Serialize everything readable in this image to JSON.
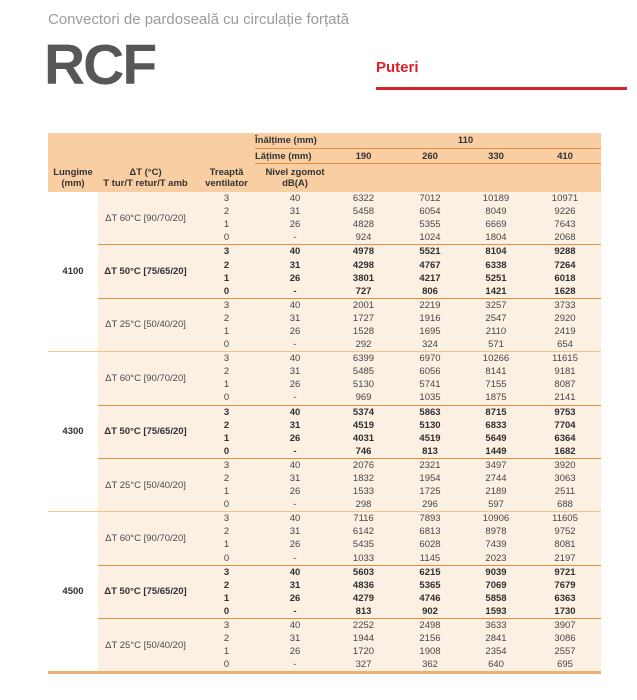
{
  "page": {
    "subtitle": "Convectori de pardoseală cu circulație forțată",
    "product_code": "RCF",
    "section_title": "Puteri"
  },
  "colors": {
    "accent_red": "#d8232a",
    "header_peach": "#f9cea3",
    "body_cream": "#fbf0e1",
    "line_dark_orange": "#e78f3e",
    "line_light_orange": "#f2c38e",
    "line_bottom": "#efaf72"
  },
  "table": {
    "height_row": {
      "label": "Înălțime (mm)",
      "value": "110"
    },
    "width_row": {
      "label": "Lățime (mm)",
      "values": [
        "190",
        "260",
        "330",
        "410"
      ]
    },
    "columns": {
      "len_col": [
        "Lungime",
        "(mm)"
      ],
      "dt_col": [
        "ΔT (°C)",
        "T tur/T retur/T amb"
      ],
      "step_col": [
        "Treaptă",
        "ventilator"
      ],
      "noise_col": [
        "Nivel zgomot",
        "dB(A)"
      ]
    },
    "groups": [
      {
        "length": "4100",
        "subgroups": [
          {
            "dt": "ΔT 60°C [90/70/20]",
            "bold": false,
            "rows": [
              {
                "step": "3",
                "noise": "40",
                "values": [
                  "6322",
                  "7012",
                  "10189",
                  "10971"
                ]
              },
              {
                "step": "2",
                "noise": "31",
                "values": [
                  "5458",
                  "6054",
                  "8049",
                  "9226"
                ]
              },
              {
                "step": "1",
                "noise": "26",
                "values": [
                  "4828",
                  "5355",
                  "6669",
                  "7643"
                ]
              },
              {
                "step": "0",
                "noise": "-",
                "values": [
                  "924",
                  "1024",
                  "1804",
                  "2068"
                ]
              }
            ]
          },
          {
            "dt": "ΔT 50°C [75/65/20]",
            "bold": true,
            "rows": [
              {
                "step": "3",
                "noise": "40",
                "values": [
                  "4978",
                  "5521",
                  "8104",
                  "9288"
                ]
              },
              {
                "step": "2",
                "noise": "31",
                "values": [
                  "4298",
                  "4767",
                  "6338",
                  "7264"
                ]
              },
              {
                "step": "1",
                "noise": "26",
                "values": [
                  "3801",
                  "4217",
                  "5251",
                  "6018"
                ]
              },
              {
                "step": "0",
                "noise": "-",
                "values": [
                  "727",
                  "806",
                  "1421",
                  "1628"
                ]
              }
            ]
          },
          {
            "dt": "ΔT 25°C [50/40/20]",
            "bold": false,
            "rows": [
              {
                "step": "3",
                "noise": "40",
                "values": [
                  "2001",
                  "2219",
                  "3257",
                  "3733"
                ]
              },
              {
                "step": "2",
                "noise": "31",
                "values": [
                  "1727",
                  "1916",
                  "2547",
                  "2920"
                ]
              },
              {
                "step": "1",
                "noise": "26",
                "values": [
                  "1528",
                  "1695",
                  "2110",
                  "2419"
                ]
              },
              {
                "step": "0",
                "noise": "-",
                "values": [
                  "292",
                  "324",
                  "571",
                  "654"
                ]
              }
            ]
          }
        ]
      },
      {
        "length": "4300",
        "subgroups": [
          {
            "dt": "ΔT 60°C [90/70/20]",
            "bold": false,
            "rows": [
              {
                "step": "3",
                "noise": "40",
                "values": [
                  "6399",
                  "6970",
                  "10266",
                  "11615"
                ]
              },
              {
                "step": "2",
                "noise": "31",
                "values": [
                  "5485",
                  "6056",
                  "8141",
                  "9181"
                ]
              },
              {
                "step": "1",
                "noise": "26",
                "values": [
                  "5130",
                  "5741",
                  "7155",
                  "8087"
                ]
              },
              {
                "step": "0",
                "noise": "-",
                "values": [
                  "969",
                  "1035",
                  "1875",
                  "2141"
                ]
              }
            ]
          },
          {
            "dt": "ΔT 50°C [75/65/20]",
            "bold": true,
            "rows": [
              {
                "step": "3",
                "noise": "40",
                "values": [
                  "5374",
                  "5863",
                  "8715",
                  "9753"
                ]
              },
              {
                "step": "2",
                "noise": "31",
                "values": [
                  "4519",
                  "5130",
                  "6833",
                  "7704"
                ]
              },
              {
                "step": "1",
                "noise": "26",
                "values": [
                  "4031",
                  "4519",
                  "5649",
                  "6364"
                ]
              },
              {
                "step": "0",
                "noise": "-",
                "values": [
                  "746",
                  "813",
                  "1449",
                  "1682"
                ]
              }
            ]
          },
          {
            "dt": "ΔT 25°C [50/40/20]",
            "bold": false,
            "rows": [
              {
                "step": "3",
                "noise": "40",
                "values": [
                  "2076",
                  "2321",
                  "3497",
                  "3920"
                ]
              },
              {
                "step": "2",
                "noise": "31",
                "values": [
                  "1832",
                  "1954",
                  "2744",
                  "3063"
                ]
              },
              {
                "step": "1",
                "noise": "26",
                "values": [
                  "1533",
                  "1725",
                  "2189",
                  "2511"
                ]
              },
              {
                "step": "0",
                "noise": "-",
                "values": [
                  "298",
                  "296",
                  "597",
                  "688"
                ]
              }
            ]
          }
        ]
      },
      {
        "length": "4500",
        "subgroups": [
          {
            "dt": "ΔT 60°C [90/70/20]",
            "bold": false,
            "rows": [
              {
                "step": "3",
                "noise": "40",
                "values": [
                  "7116",
                  "7893",
                  "10906",
                  "11605"
                ]
              },
              {
                "step": "2",
                "noise": "31",
                "values": [
                  "6142",
                  "6813",
                  "8978",
                  "9752"
                ]
              },
              {
                "step": "1",
                "noise": "26",
                "values": [
                  "5435",
                  "6028",
                  "7439",
                  "8081"
                ]
              },
              {
                "step": "0",
                "noise": "-",
                "values": [
                  "1033",
                  "1145",
                  "2023",
                  "2197"
                ]
              }
            ]
          },
          {
            "dt": "ΔT 50°C [75/65/20]",
            "bold": true,
            "rows": [
              {
                "step": "3",
                "noise": "40",
                "values": [
                  "5603",
                  "6215",
                  "9039",
                  "9721"
                ]
              },
              {
                "step": "2",
                "noise": "31",
                "values": [
                  "4836",
                  "5365",
                  "7069",
                  "7679"
                ]
              },
              {
                "step": "1",
                "noise": "26",
                "values": [
                  "4279",
                  "4746",
                  "5858",
                  "6363"
                ]
              },
              {
                "step": "0",
                "noise": "-",
                "values": [
                  "813",
                  "902",
                  "1593",
                  "1730"
                ]
              }
            ]
          },
          {
            "dt": "ΔT 25°C [50/40/20]",
            "bold": false,
            "rows": [
              {
                "step": "3",
                "noise": "40",
                "values": [
                  "2252",
                  "2498",
                  "3633",
                  "3907"
                ]
              },
              {
                "step": "2",
                "noise": "31",
                "values": [
                  "1944",
                  "2156",
                  "2841",
                  "3086"
                ]
              },
              {
                "step": "1",
                "noise": "26",
                "values": [
                  "1720",
                  "1908",
                  "2354",
                  "2557"
                ]
              },
              {
                "step": "0",
                "noise": "-",
                "values": [
                  "327",
                  "362",
                  "640",
                  "695"
                ]
              }
            ]
          }
        ]
      }
    ]
  }
}
